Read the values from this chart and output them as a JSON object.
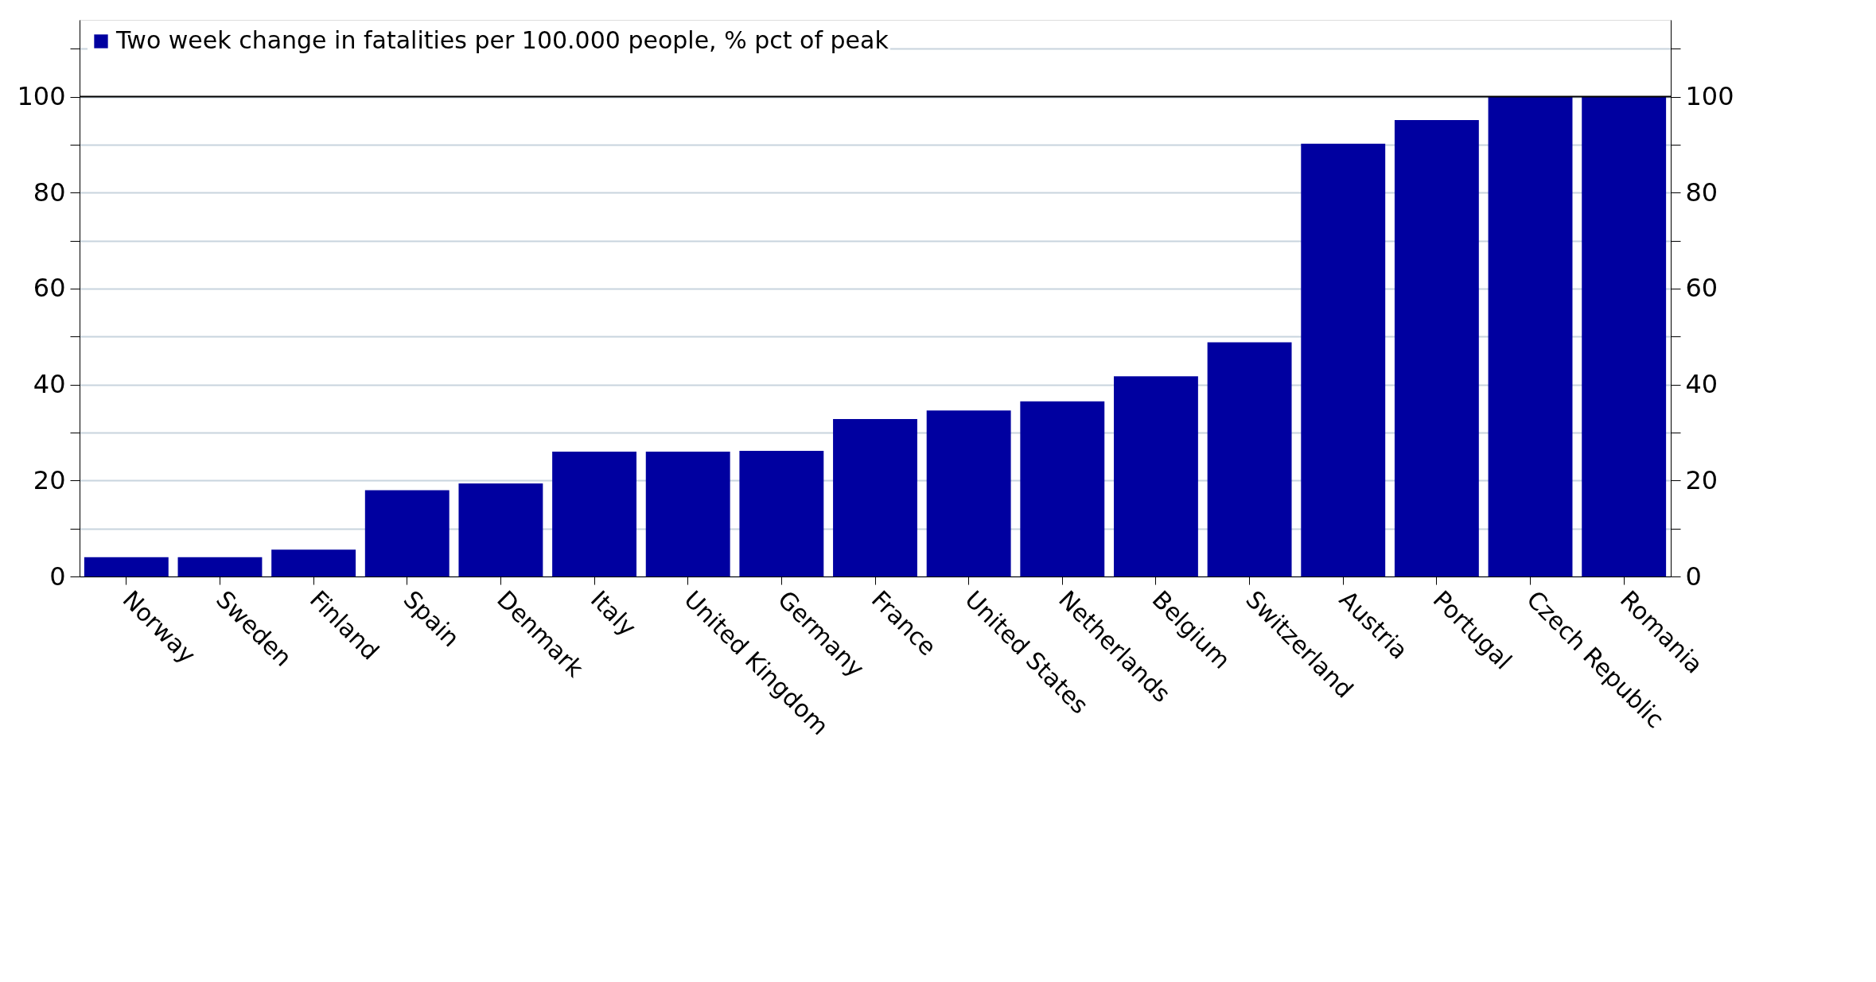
{
  "chart_data": {
    "type": "bar",
    "categories": [
      "Norway",
      "Sweden",
      "Finland",
      "Spain",
      "Denmark",
      "Italy",
      "United Kingdom",
      "Germany",
      "France",
      "United States",
      "Netherlands",
      "Belgium",
      "Switzerland",
      "Austria",
      "Portugal",
      "Czech Republic",
      "Romania"
    ],
    "series": [
      {
        "name": "Two week change in fatalities per 100.000 people, % pct of peak",
        "color": "#0000a0",
        "values": [
          4,
          4,
          5.6,
          18,
          19.4,
          26,
          26,
          26.2,
          32.8,
          34.6,
          36.5,
          41.7,
          48.8,
          90.2,
          95.1,
          100,
          100
        ]
      }
    ],
    "ylim": [
      0,
      116
    ],
    "yticks": [
      0,
      {
        "value": 10,
        "label": null
      },
      20,
      {
        "value": 30,
        "label": null
      },
      40,
      {
        "value": 50,
        "label": null
      },
      60,
      {
        "value": 70,
        "label": null
      },
      80,
      {
        "value": 90,
        "label": null
      },
      100,
      {
        "value": 110,
        "label": null
      }
    ],
    "y2lim": [
      0,
      116
    ],
    "y2ticks": [
      0,
      {
        "value": 10,
        "label": null
      },
      20,
      {
        "value": 30,
        "label": null
      },
      40,
      {
        "value": 50,
        "label": null
      },
      60,
      {
        "value": 70,
        "label": null
      },
      80,
      {
        "value": 90,
        "label": null
      },
      100,
      {
        "value": 110,
        "label": null
      }
    ],
    "ref_lines": [
      {
        "axis": "y",
        "value": 100,
        "color": "#000000"
      }
    ],
    "grid": "y",
    "legend": "top left"
  }
}
